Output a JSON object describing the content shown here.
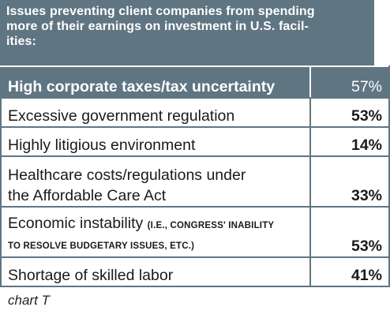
{
  "chart_data": {
    "type": "table",
    "title": "Issues preventing client companies from spending more of their earnings on investment in U.S. facil-ities:",
    "rows": [
      {
        "label": "High corporate taxes/tax uncertainty",
        "value": "57%"
      },
      {
        "label": "Excessive government regulation",
        "value": "53%"
      },
      {
        "label": "Highly litigious environment",
        "value": "14%"
      },
      {
        "label_line1": "Healthcare costs/regulations under",
        "label_line2": "the Affordable Care Act",
        "value": "33%"
      },
      {
        "label_main": "Economic instability",
        "label_note1": "(I.E., CONGRESS' INABILITY",
        "label_note2": "TO RESOLVE BUDGETARY ISSUES, ETC.)",
        "value": "53%"
      },
      {
        "label": "Shortage of skilled labor",
        "value": "41%"
      }
    ],
    "values": [
      57,
      53,
      14,
      33,
      53,
      41
    ]
  },
  "header": {
    "line1": "Issues preventing client companies from spending",
    "line2": "more of their earnings on investment in U.S. facil-",
    "line3": "ities:"
  },
  "caption": "chart T",
  "colors": {
    "header_bg": "#5f7582",
    "text": "#1a1a1a"
  }
}
